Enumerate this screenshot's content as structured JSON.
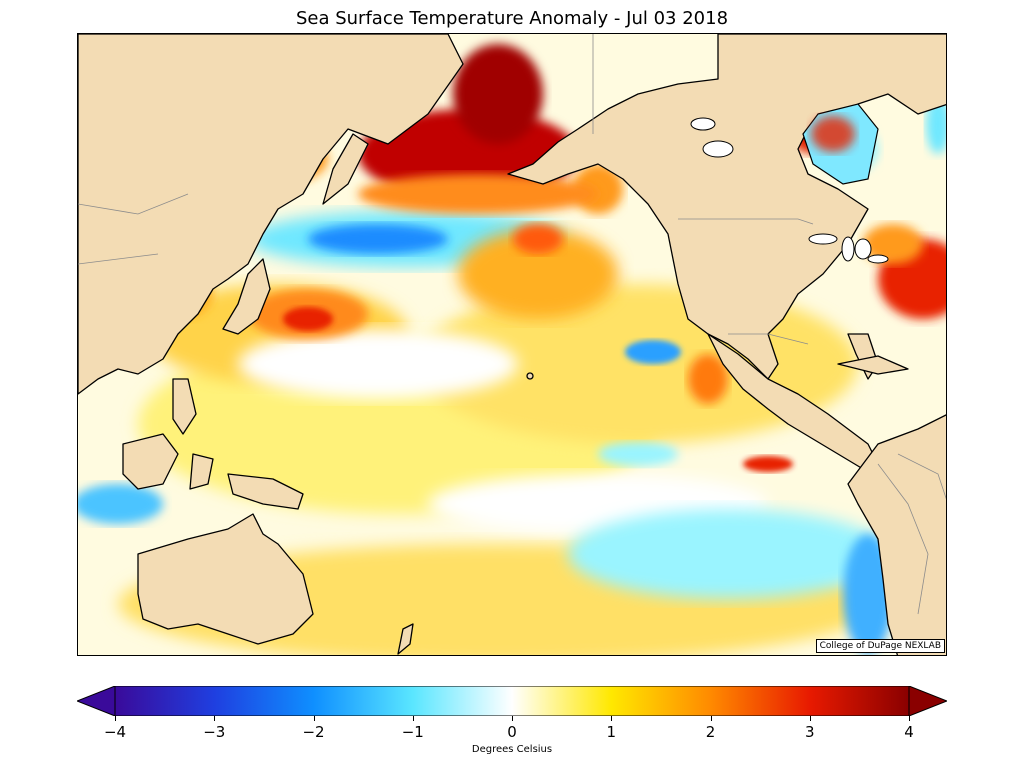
{
  "title": "Sea Surface Temperature Anomaly - Jul 03 2018",
  "credit": "College of DuPage NEXLAB",
  "colorbar": {
    "label": "Degrees Celsius",
    "min": -4,
    "max": 4,
    "ticks": [
      "−4",
      "−3",
      "−2",
      "−1",
      "0",
      "1",
      "2",
      "3",
      "4"
    ],
    "colors": {
      "very_cold": "#3a0a9a",
      "cold": "#0f6fff",
      "cool": "#7ff0ff",
      "neutral": "#ffffff",
      "warm": "#ffe800",
      "hot": "#ff3a00",
      "very_hot": "#8a0000"
    }
  },
  "map": {
    "land_color": "#f3dcb4",
    "coast_color": "#000000"
  }
}
